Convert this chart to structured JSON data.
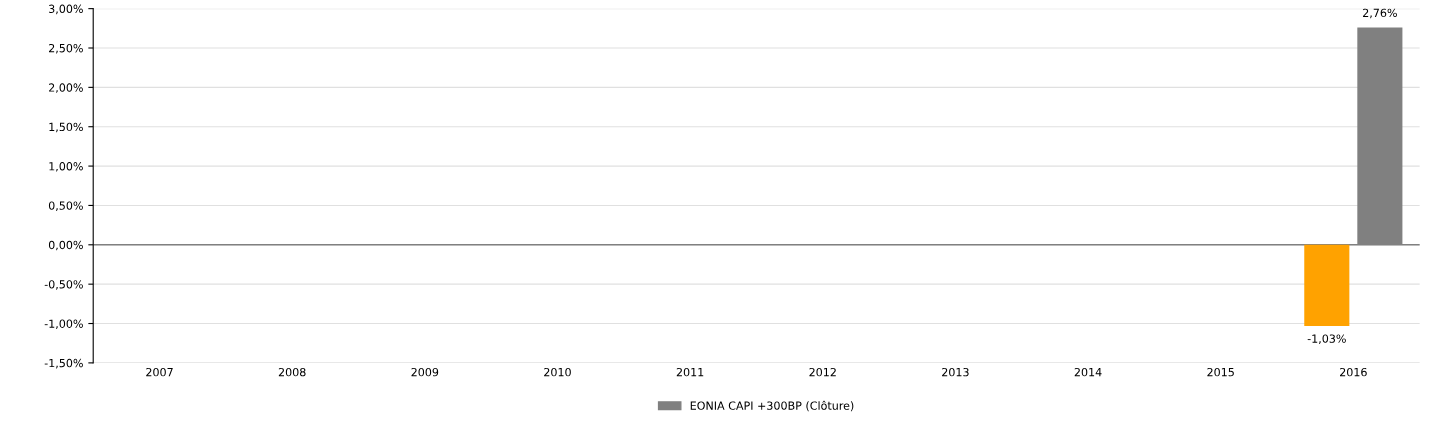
{
  "chart_data": {
    "type": "bar",
    "categories": [
      "2007",
      "2008",
      "2009",
      "2010",
      "2011",
      "2012",
      "2013",
      "2014",
      "2015",
      "2016"
    ],
    "series": [
      {
        "color": "#ffa200",
        "values": [
          null,
          null,
          null,
          null,
          null,
          null,
          null,
          null,
          null,
          -1.03
        ],
        "value_labels": [
          null,
          null,
          null,
          null,
          null,
          null,
          null,
          null,
          null,
          "-1,03%"
        ]
      },
      {
        "name": "EONIA CAPI +300BP (Clôture)",
        "color": "#808080",
        "values": [
          null,
          null,
          null,
          null,
          null,
          null,
          null,
          null,
          null,
          2.76
        ],
        "value_labels": [
          null,
          null,
          null,
          null,
          null,
          null,
          null,
          null,
          null,
          "2,76%"
        ]
      }
    ],
    "ylim": [
      -1.5,
      3.0
    ],
    "yticks": [
      {
        "value": -1.5,
        "label": "-1,50%"
      },
      {
        "value": -1.0,
        "label": "-1,00%"
      },
      {
        "value": -0.5,
        "label": "-0,50%"
      },
      {
        "value": 0,
        "label": "0,00%"
      },
      {
        "value": 0.5,
        "label": "0,50%"
      },
      {
        "value": 1.0,
        "label": "1,00%"
      },
      {
        "value": 1.5,
        "label": "1,50%"
      },
      {
        "value": 2.0,
        "label": "2,00%"
      },
      {
        "value": 2.5,
        "label": "2,50%"
      },
      {
        "value": 3.0,
        "label": "3,00%"
      }
    ],
    "grid": "y",
    "legend": "bottom"
  }
}
